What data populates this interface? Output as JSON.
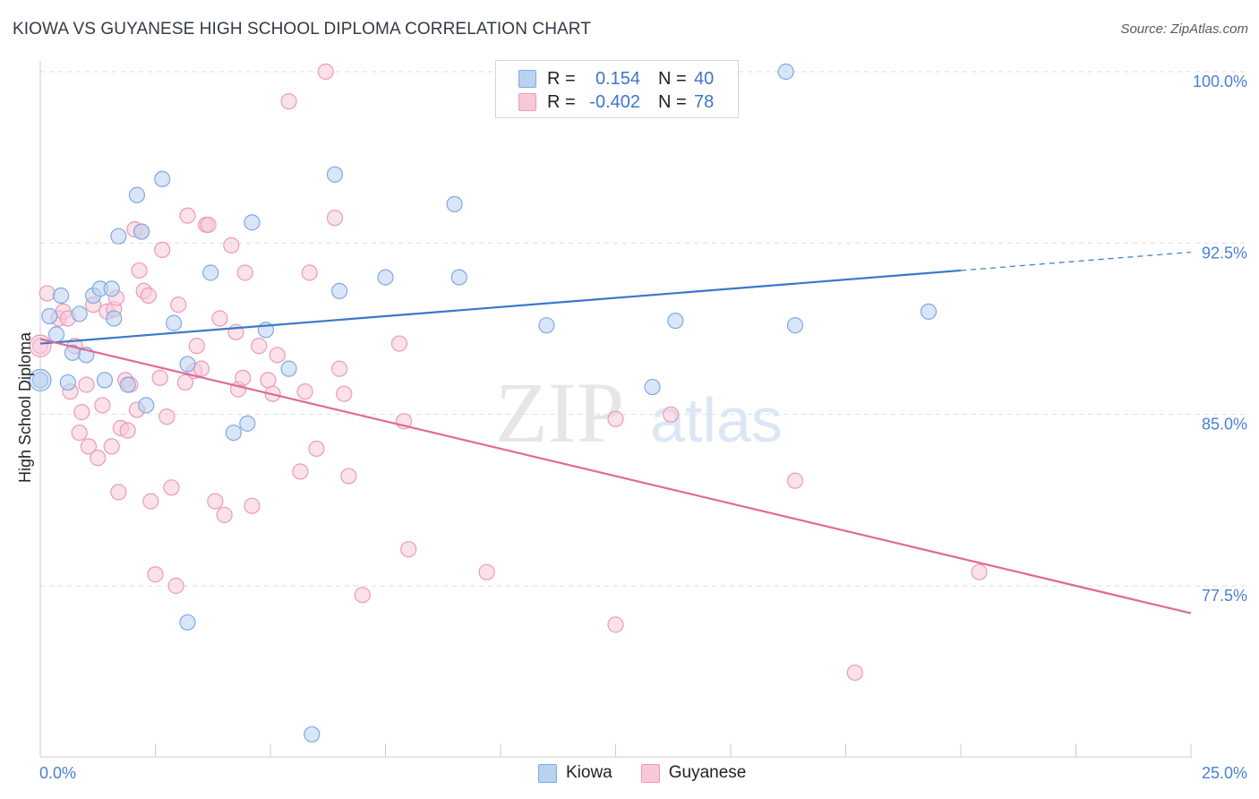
{
  "title": "KIOWA VS GUYANESE HIGH SCHOOL DIPLOMA CORRELATION CHART",
  "source": "Source: ZipAtlas.com",
  "watermark": {
    "zip": "ZIP",
    "atlas": "atlas"
  },
  "legend_top": {
    "rows": [
      {
        "r_label": "R =",
        "r_value": "0.154",
        "n_label": "N =",
        "n_value": "40"
      },
      {
        "r_label": "R =",
        "r_value": "-0.402",
        "n_label": "N =",
        "n_value": "78"
      }
    ]
  },
  "legend_bottom": {
    "kiowa": "Kiowa",
    "guyanese": "Guyanese"
  },
  "colors": {
    "kiowa_fill": "#b9d2f2",
    "kiowa_stroke": "#7ea9e0",
    "kiowa_line": "#3a78c9",
    "guyanese_fill": "#f8c8d8",
    "guyanese_stroke": "#ec9ab6",
    "guyanese_line": "#e06a95",
    "tick_label": "#4a7fd4",
    "grid": "#dddddd"
  },
  "chart_data": {
    "type": "scatter",
    "title": "KIOWA VS GUYANESE HIGH SCHOOL DIPLOMA CORRELATION CHART",
    "xlabel": "",
    "ylabel": "High School Diploma",
    "xlim": [
      0.0,
      25.0
    ],
    "ylim": [
      70.0,
      101.5
    ],
    "x_tick_labels": [
      "0.0%",
      "25.0%"
    ],
    "y_ticks": [
      77.5,
      85.0,
      92.5,
      100.0
    ],
    "y_tick_labels": [
      "77.5%",
      "85.0%",
      "92.5%",
      "100.0%"
    ],
    "series": [
      {
        "name": "Kiowa",
        "R": 0.154,
        "N": 40,
        "trend": {
          "x0": 0.0,
          "y0": 88.1,
          "x1": 20.0,
          "y1": 91.3,
          "dash_to_x": 25.0,
          "dash_to_y": 92.1
        },
        "points": [
          [
            0.0,
            86.5
          ],
          [
            0.2,
            89.3
          ],
          [
            0.35,
            88.5
          ],
          [
            0.45,
            90.2
          ],
          [
            0.6,
            86.4
          ],
          [
            0.7,
            87.7
          ],
          [
            0.85,
            89.4
          ],
          [
            1.0,
            87.6
          ],
          [
            1.15,
            90.2
          ],
          [
            1.3,
            90.5
          ],
          [
            1.4,
            86.5
          ],
          [
            1.55,
            90.5
          ],
          [
            1.6,
            89.2
          ],
          [
            1.7,
            92.8
          ],
          [
            1.9,
            86.3
          ],
          [
            2.1,
            94.6
          ],
          [
            2.2,
            93.0
          ],
          [
            2.3,
            85.4
          ],
          [
            2.65,
            95.3
          ],
          [
            2.9,
            89.0
          ],
          [
            3.2,
            87.2
          ],
          [
            3.2,
            75.9
          ],
          [
            3.7,
            91.2
          ],
          [
            4.2,
            84.2
          ],
          [
            4.5,
            84.6
          ],
          [
            4.6,
            93.4
          ],
          [
            4.9,
            88.7
          ],
          [
            5.4,
            87.0
          ],
          [
            5.9,
            71.0
          ],
          [
            6.4,
            95.5
          ],
          [
            6.5,
            90.4
          ],
          [
            7.5,
            91.0
          ],
          [
            9.0,
            94.2
          ],
          [
            9.1,
            91.0
          ],
          [
            11.0,
            88.9
          ],
          [
            13.3,
            86.2
          ],
          [
            13.8,
            89.1
          ],
          [
            16.2,
            100.0
          ],
          [
            16.4,
            88.9
          ],
          [
            19.3,
            89.5
          ]
        ]
      },
      {
        "name": "Guyanese",
        "R": -0.402,
        "N": 78,
        "trend": {
          "x0": 0.0,
          "y0": 88.3,
          "x1": 25.0,
          "y1": 76.3
        },
        "points": [
          [
            0.0,
            88.0
          ],
          [
            0.15,
            90.3
          ],
          [
            0.4,
            89.2
          ],
          [
            0.5,
            89.5
          ],
          [
            0.6,
            89.2
          ],
          [
            0.65,
            86.0
          ],
          [
            0.75,
            88.0
          ],
          [
            0.85,
            84.2
          ],
          [
            0.9,
            85.1
          ],
          [
            1.0,
            86.3
          ],
          [
            1.05,
            83.6
          ],
          [
            1.15,
            89.8
          ],
          [
            1.25,
            83.1
          ],
          [
            1.35,
            85.4
          ],
          [
            1.45,
            89.5
          ],
          [
            1.55,
            83.6
          ],
          [
            1.6,
            89.6
          ],
          [
            1.65,
            90.1
          ],
          [
            1.7,
            81.6
          ],
          [
            1.75,
            84.4
          ],
          [
            1.85,
            86.5
          ],
          [
            1.9,
            84.3
          ],
          [
            1.95,
            86.3
          ],
          [
            2.05,
            93.1
          ],
          [
            2.1,
            85.2
          ],
          [
            2.15,
            91.3
          ],
          [
            2.2,
            93.0
          ],
          [
            2.25,
            90.4
          ],
          [
            2.35,
            90.2
          ],
          [
            2.4,
            81.2
          ],
          [
            2.5,
            78.0
          ],
          [
            2.6,
            86.6
          ],
          [
            2.65,
            92.2
          ],
          [
            2.75,
            84.9
          ],
          [
            2.85,
            81.8
          ],
          [
            2.95,
            77.5
          ],
          [
            3.0,
            89.8
          ],
          [
            3.15,
            86.4
          ],
          [
            3.2,
            93.7
          ],
          [
            3.35,
            86.9
          ],
          [
            3.4,
            88.0
          ],
          [
            3.5,
            87.0
          ],
          [
            3.6,
            93.3
          ],
          [
            3.65,
            93.3
          ],
          [
            3.8,
            81.2
          ],
          [
            3.9,
            89.2
          ],
          [
            4.0,
            80.6
          ],
          [
            4.15,
            92.4
          ],
          [
            4.25,
            88.6
          ],
          [
            4.3,
            86.1
          ],
          [
            4.4,
            86.6
          ],
          [
            4.45,
            91.2
          ],
          [
            4.6,
            81.0
          ],
          [
            4.75,
            88.0
          ],
          [
            4.95,
            86.5
          ],
          [
            5.05,
            85.9
          ],
          [
            5.15,
            87.6
          ],
          [
            5.4,
            98.7
          ],
          [
            5.65,
            82.5
          ],
          [
            5.75,
            86.0
          ],
          [
            5.85,
            91.2
          ],
          [
            6.0,
            83.5
          ],
          [
            6.4,
            93.6
          ],
          [
            6.5,
            87.0
          ],
          [
            6.6,
            85.9
          ],
          [
            6.7,
            82.3
          ],
          [
            7.0,
            77.1
          ],
          [
            7.8,
            88.1
          ],
          [
            7.9,
            84.7
          ],
          [
            8.0,
            79.1
          ],
          [
            9.7,
            78.1
          ],
          [
            12.5,
            75.8
          ],
          [
            12.5,
            84.8
          ],
          [
            13.7,
            85.0
          ],
          [
            16.4,
            82.1
          ],
          [
            17.7,
            73.7
          ],
          [
            20.4,
            78.1
          ],
          [
            6.2,
            100.0
          ]
        ]
      }
    ]
  }
}
